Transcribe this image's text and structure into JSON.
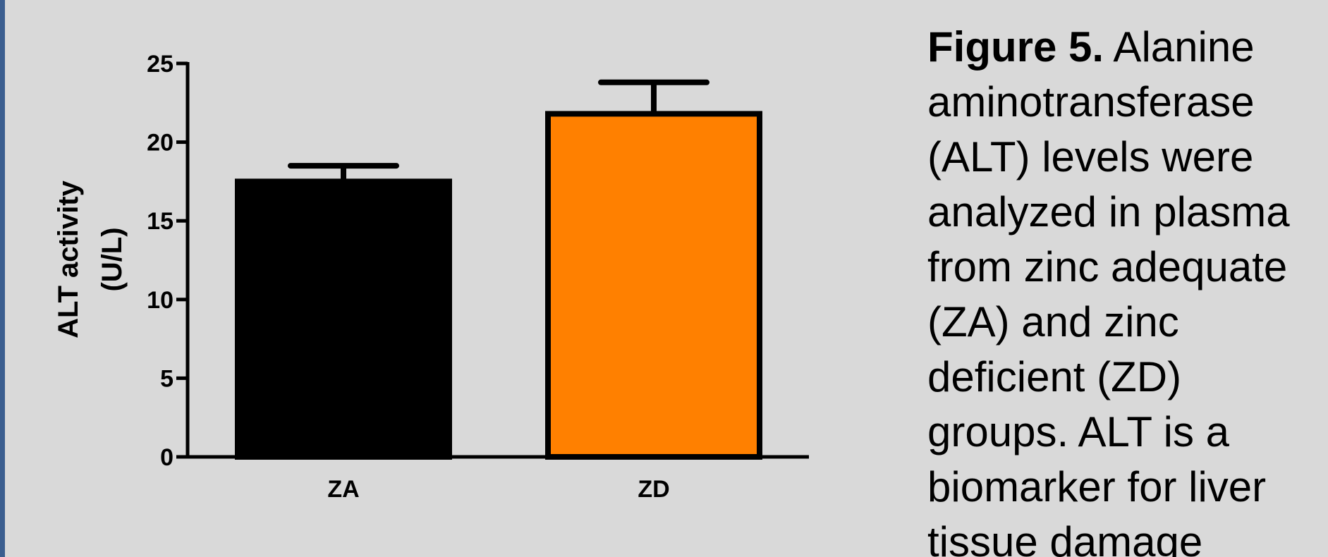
{
  "chart_data": {
    "type": "bar",
    "categories": [
      "ZA",
      "ZD"
    ],
    "values": [
      17.5,
      21.8
    ],
    "error_upper": [
      18.5,
      23.8
    ],
    "colors": [
      "#000000",
      "#ff8000"
    ],
    "ylabel_line1": "ALT activity",
    "ylabel_line2": "(U/L)",
    "xlabel": "",
    "ylim": [
      0,
      25
    ],
    "yticks": [
      0,
      5,
      10,
      15,
      20,
      25
    ],
    "grid": false,
    "legend": "none"
  },
  "caption": {
    "label": "Figure 5.",
    "text": " Alanine\naminotransferase\n(ALT) levels were\nanalyzed  in plasma\nfrom zinc adequate\n(ZA) and zinc\ndeficient (ZD)\ngroups. ALT is a\nbiomarker for liver\ntissue damage"
  }
}
